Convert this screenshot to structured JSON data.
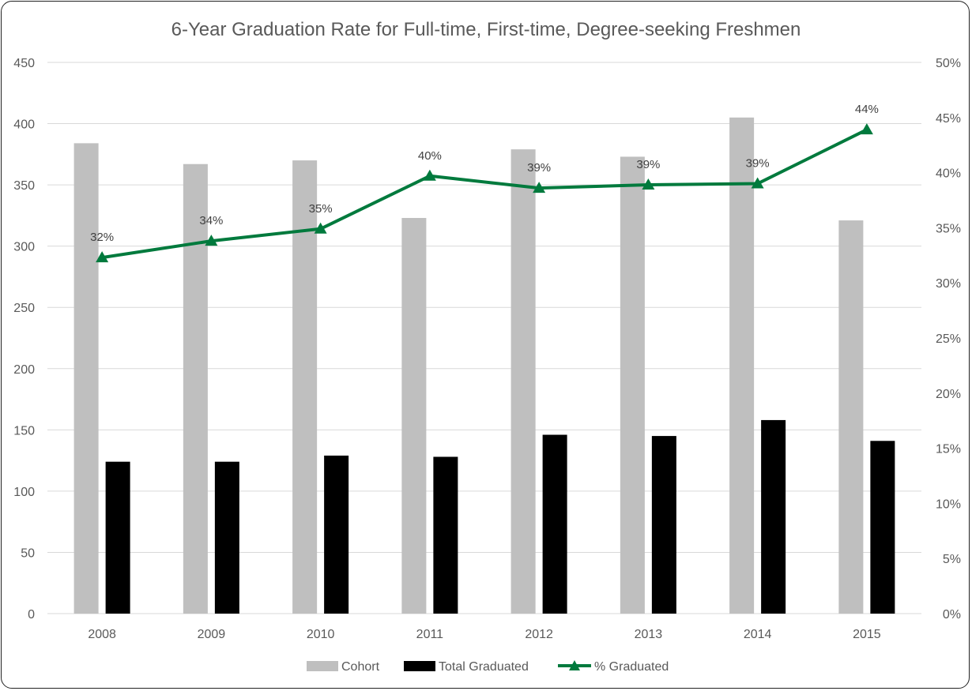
{
  "chart_data": {
    "type": "bar",
    "title": "6-Year Graduation Rate for Full-time, First-time, Degree-seeking Freshmen",
    "categories": [
      "2008",
      "2009",
      "2010",
      "2011",
      "2012",
      "2013",
      "2014",
      "2015"
    ],
    "series": [
      {
        "name": "Cohort",
        "type": "bar",
        "axis": "left",
        "color": "#bfbfbf",
        "values": [
          384,
          367,
          370,
          323,
          379,
          373,
          405,
          321
        ]
      },
      {
        "name": "Total Graduated",
        "type": "bar",
        "axis": "left",
        "color": "#000000",
        "values": [
          124,
          124,
          129,
          128,
          146,
          145,
          158,
          141
        ]
      },
      {
        "name": "% Graduated",
        "type": "line",
        "axis": "right",
        "color": "#007a3d",
        "marker": "triangle",
        "values": [
          0.323,
          0.338,
          0.349,
          0.397,
          0.386,
          0.389,
          0.39,
          0.439
        ],
        "labels": [
          "32%",
          "34%",
          "35%",
          "40%",
          "39%",
          "39%",
          "39%",
          "44%"
        ]
      }
    ],
    "y_left": {
      "min": 0,
      "max": 450,
      "step": 50,
      "ticks": [
        "0",
        "50",
        "100",
        "150",
        "200",
        "250",
        "300",
        "350",
        "400",
        "450"
      ]
    },
    "y_right": {
      "min": 0,
      "max": 0.5,
      "step": 0.05,
      "ticks": [
        "0%",
        "5%",
        "10%",
        "15%",
        "20%",
        "25%",
        "30%",
        "35%",
        "40%",
        "45%",
        "50%"
      ]
    },
    "grid": true,
    "legend_position": "bottom"
  }
}
